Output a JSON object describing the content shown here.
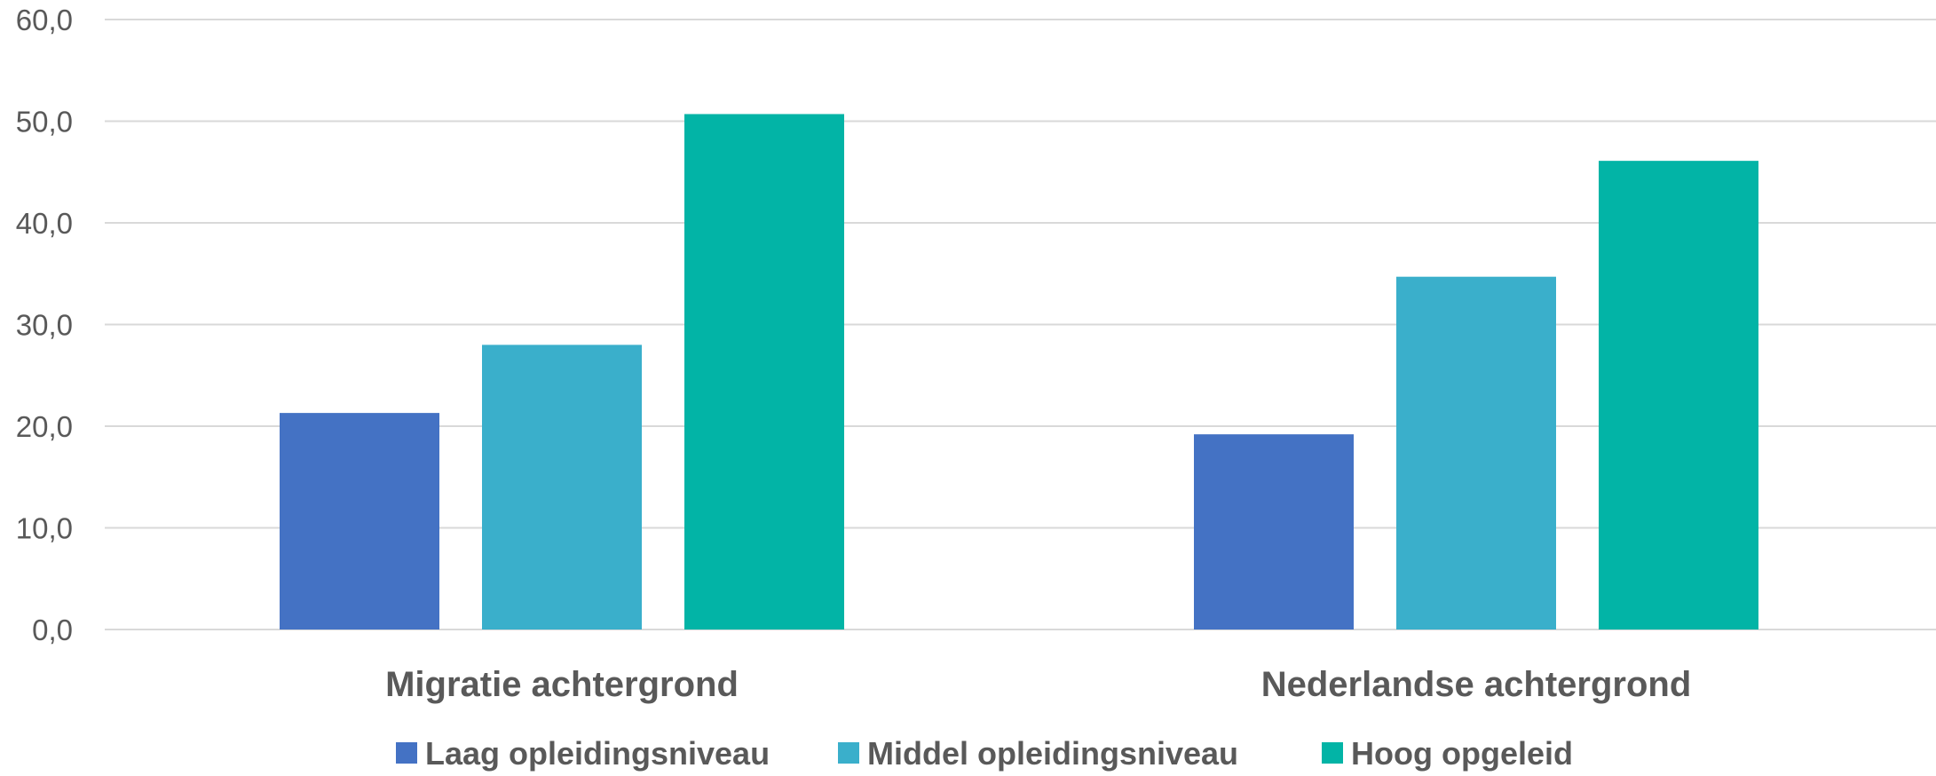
{
  "chart_data": {
    "type": "bar",
    "title": "",
    "xlabel": "",
    "ylabel": "",
    "categories": [
      "Migratie achtergrond",
      "Nederlandse achtergrond"
    ],
    "series": [
      {
        "name": "Laag opleidingsniveau",
        "values": [
          21.3,
          19.2
        ],
        "color": "#4472c4"
      },
      {
        "name": "Middel opleidingsniveau",
        "values": [
          28.0,
          34.7
        ],
        "color": "#3aafcb"
      },
      {
        "name": "Hoog opgeleid",
        "values": [
          50.7,
          46.1
        ],
        "color": "#02b4a6"
      }
    ],
    "ylim": [
      0,
      60
    ],
    "yticks": [
      "0,0",
      "10,0",
      "20,0",
      "30,0",
      "40,0",
      "50,0",
      "60,0"
    ],
    "grid": true,
    "legend_position": "bottom"
  }
}
